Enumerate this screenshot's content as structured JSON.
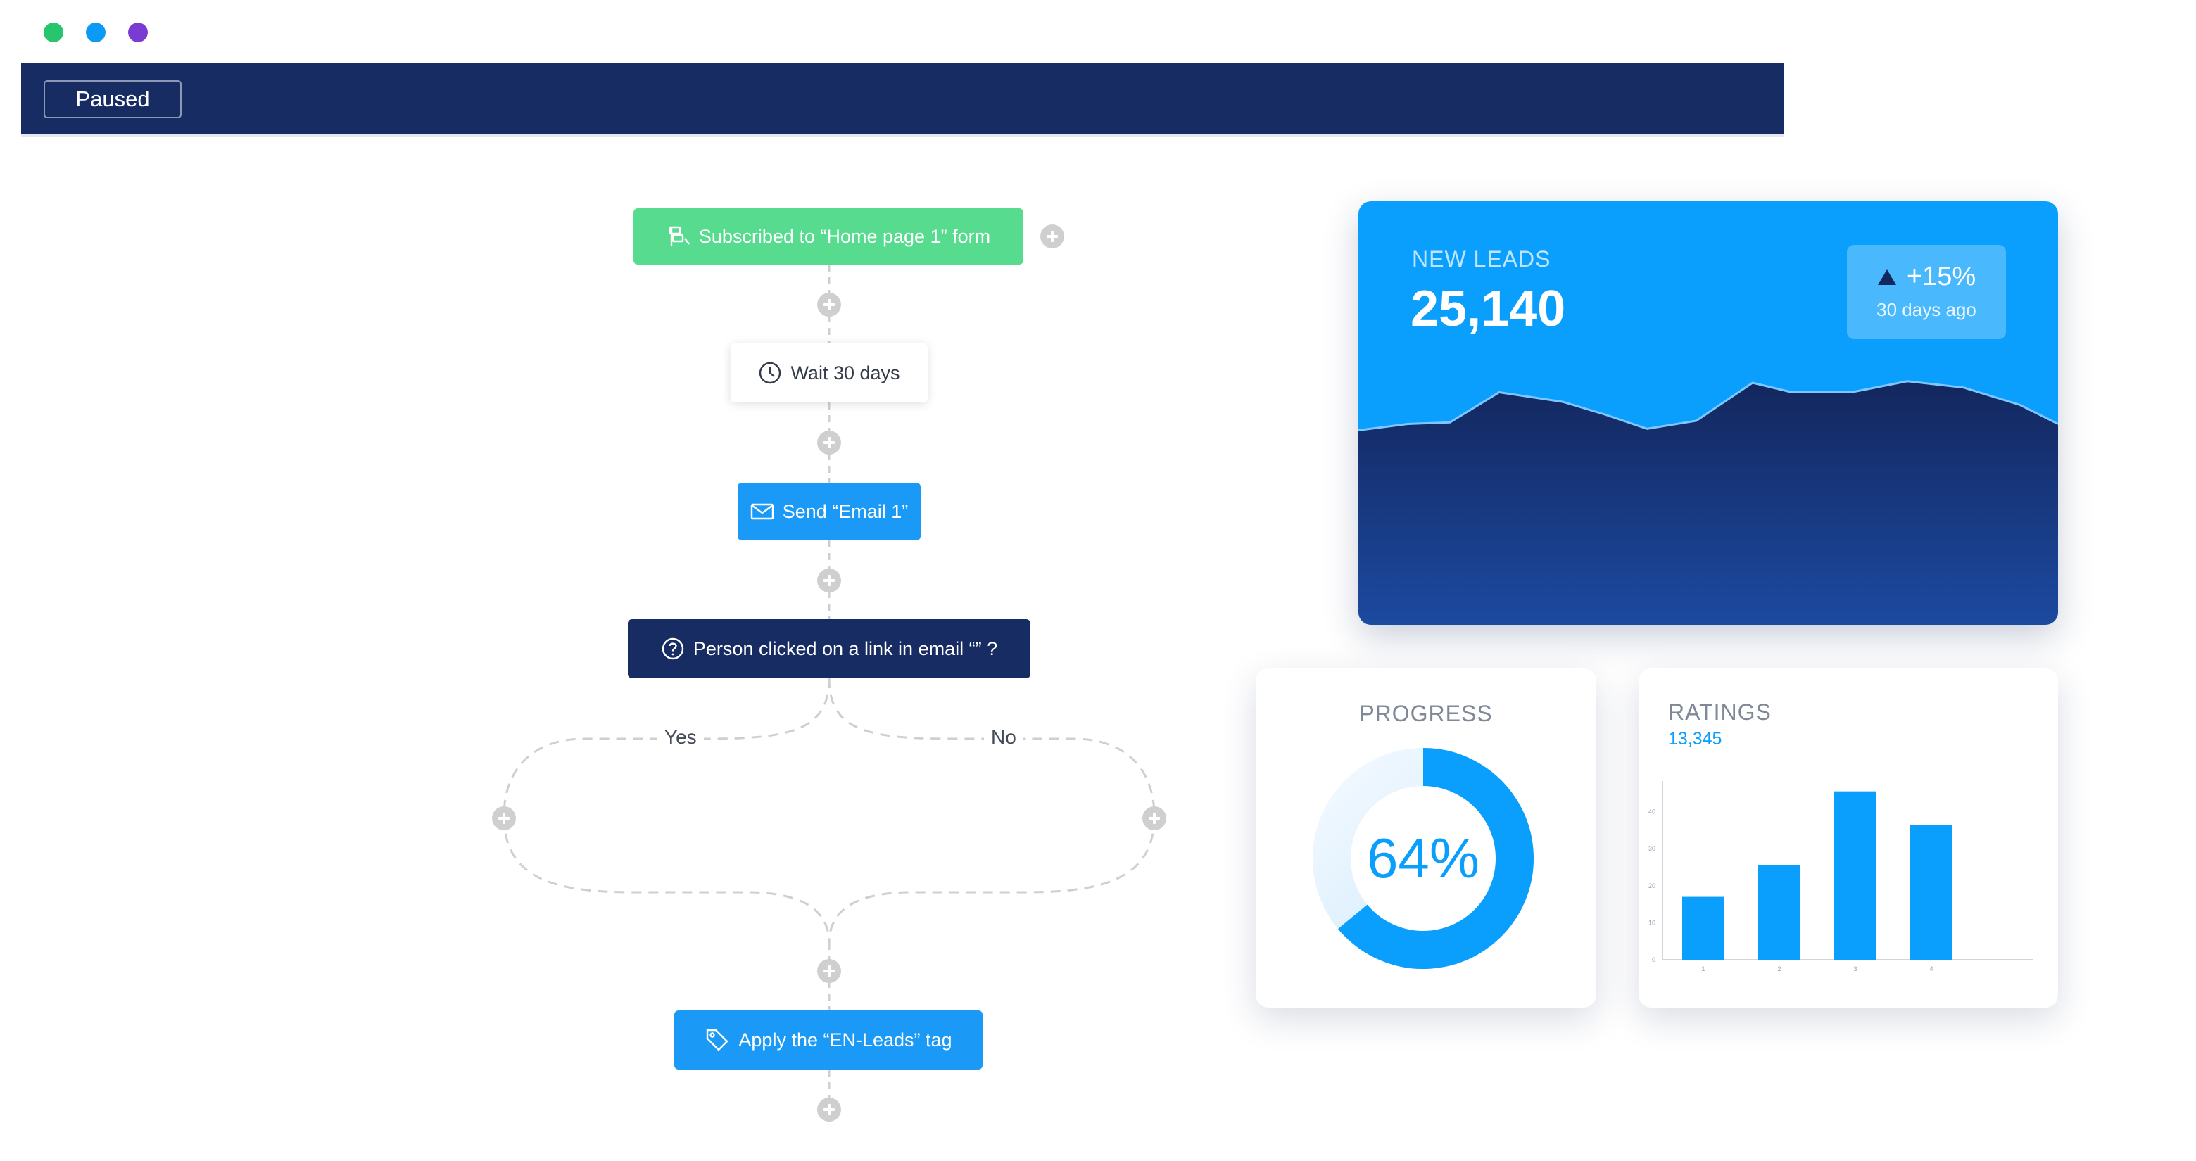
{
  "window": {
    "dots": [
      {
        "name": "green",
        "color": "#27c66c"
      },
      {
        "name": "blue",
        "color": "#0b9af6"
      },
      {
        "name": "purple",
        "color": "#7a3bd3"
      }
    ]
  },
  "toolbar": {
    "status_label": "Paused"
  },
  "workflow": {
    "trigger": {
      "label": "Subscribed to “Home page 1” form",
      "icon": "form-icon"
    },
    "wait": {
      "label": "Wait 30 days",
      "icon": "clock-icon"
    },
    "email": {
      "label": "Send “Email 1”",
      "icon": "envelope-icon"
    },
    "condition": {
      "label": "Person clicked on a link in email “” ?",
      "icon": "question-icon"
    },
    "branches": {
      "yes": "Yes",
      "no": "No"
    },
    "tag": {
      "label": "Apply the “EN-Leads” tag",
      "icon": "tag-icon"
    }
  },
  "leads_card": {
    "title": "NEW LEADS",
    "value": "25,140",
    "delta": "+15%",
    "delta_period": "30 days ago",
    "delta_icon": "triangle-up-icon"
  },
  "progress_card": {
    "title": "PROGRESS",
    "value_label": "64%",
    "value": 0.64
  },
  "ratings_card": {
    "title": "RATINGS",
    "subtitle": "13,345"
  },
  "colors": {
    "brand_navy": "#172c63",
    "accent_blue": "#0b9ffd",
    "trigger_green": "#57dc8f"
  },
  "chart_data": [
    {
      "type": "area",
      "x": [
        1,
        2,
        3,
        4,
        5,
        6,
        7,
        8,
        9,
        10,
        11,
        12,
        13,
        14,
        15
      ],
      "values": [
        42,
        46,
        47,
        66,
        60,
        52,
        43,
        48,
        72,
        66,
        66,
        73,
        69,
        58,
        46
      ]
    },
    {
      "type": "bar",
      "categories": [
        "1",
        "2",
        "3",
        "4"
      ],
      "values": [
        17,
        25.5,
        45.5,
        36.5
      ],
      "yticks": [
        0,
        10,
        20,
        30,
        40
      ],
      "ylim": [
        0,
        50
      ]
    }
  ]
}
